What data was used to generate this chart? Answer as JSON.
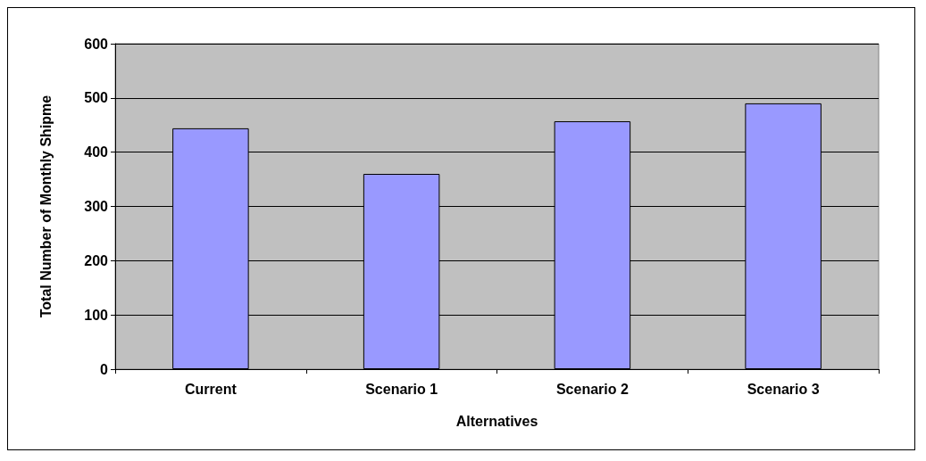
{
  "chart_data": {
    "type": "bar",
    "xlabel": "Alternatives",
    "ylabel": "Total Number of Monthly Shipme",
    "categories": [
      "Current",
      "Scenario 1",
      "Scenario 2",
      "Scenario 3"
    ],
    "values": [
      444,
      360,
      457,
      490
    ],
    "color": "#9999ff",
    "ylim": [
      0,
      600
    ],
    "yticks": [
      0,
      100,
      200,
      300,
      400,
      500,
      600
    ],
    "grid": "y"
  }
}
